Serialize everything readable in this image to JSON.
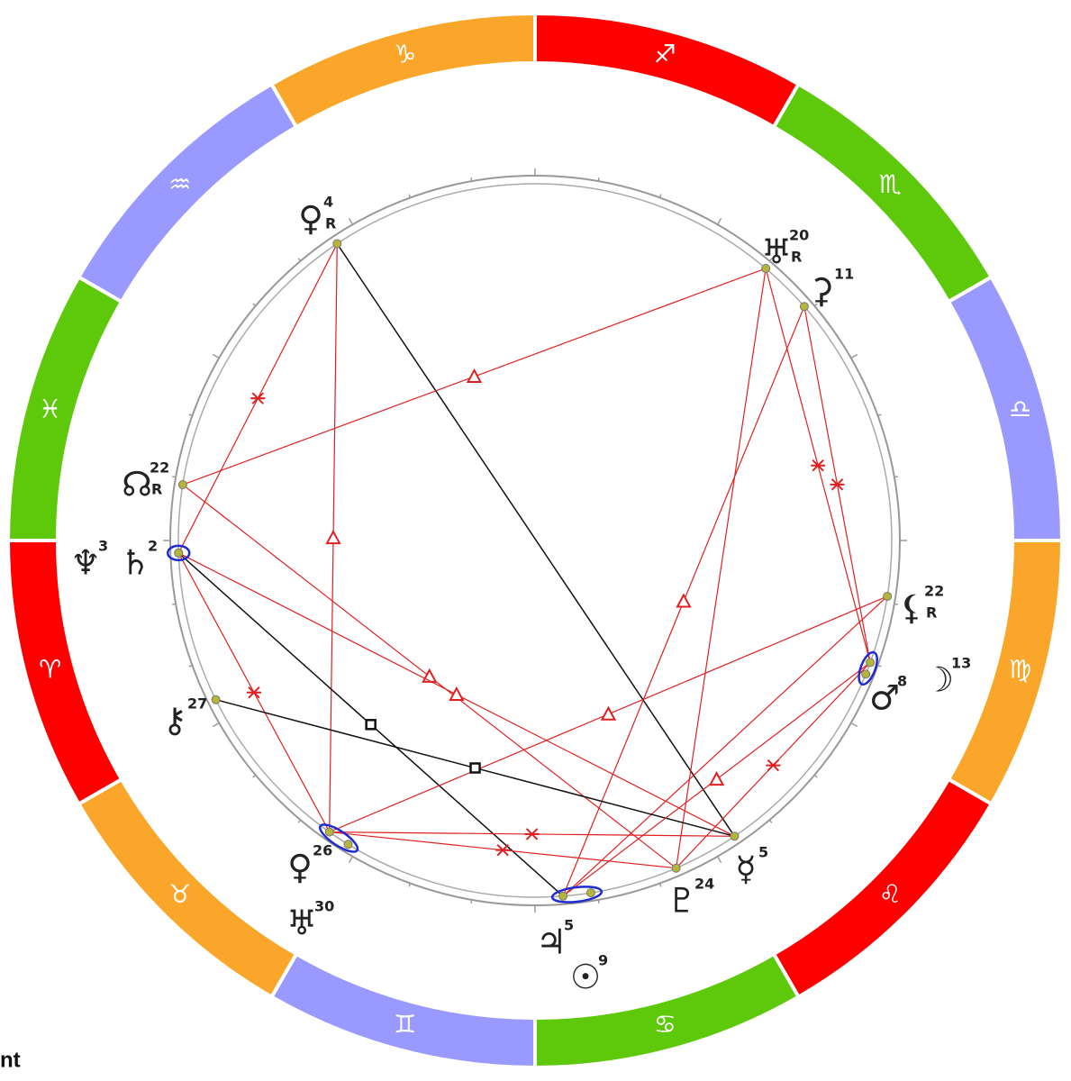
{
  "zodiac": [
    {
      "label": "♐",
      "color": "#ff0000"
    },
    {
      "label": "♏",
      "color": "#5dc90a"
    },
    {
      "label": "♎",
      "color": "#9999ff"
    },
    {
      "label": "♍",
      "color": "#f9a62a"
    },
    {
      "label": "♌",
      "color": "#ff0000"
    },
    {
      "label": "♋",
      "color": "#5dc90a"
    },
    {
      "label": "♊",
      "color": "#9999ff"
    },
    {
      "label": "♉",
      "color": "#f9a62a"
    },
    {
      "label": "♈",
      "color": "#ff0000"
    },
    {
      "label": "♓",
      "color": "#5dc90a"
    },
    {
      "label": "♒",
      "color": "#9999ff"
    },
    {
      "label": "♑",
      "color": "#f9a62a"
    }
  ],
  "planets": [
    {
      "symbol": "♀",
      "degree": 4,
      "retro": "R"
    },
    {
      "symbol": "♅",
      "degree": 20,
      "retro": "R"
    },
    {
      "symbol": "⚳",
      "degree": 11
    },
    {
      "symbol": "☊",
      "degree": 22,
      "retro": "R"
    },
    {
      "symbol": "♆",
      "degree": 3
    },
    {
      "symbol": "♄",
      "degree": 2
    },
    {
      "symbol": "⚸",
      "degree": 22,
      "retro": "R"
    },
    {
      "symbol": "♂",
      "degree": 8
    },
    {
      "symbol": "☽",
      "degree": 13
    },
    {
      "symbol": "⚷",
      "degree": 27
    },
    {
      "symbol": "♀",
      "degree": 26
    },
    {
      "symbol": "♅",
      "degree": 30
    },
    {
      "symbol": "♃",
      "degree": 5
    },
    {
      "symbol": "☉",
      "degree": 9
    },
    {
      "symbol": "♇",
      "degree": 24
    },
    {
      "symbol": "☿",
      "degree": 5
    }
  ],
  "footer": "nt"
}
